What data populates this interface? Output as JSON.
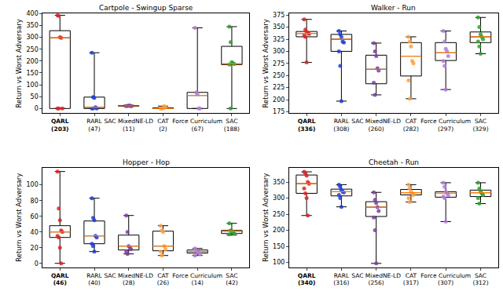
{
  "chart_data": [
    {
      "type": "box",
      "title": "Cartpole - Swingup Sparse",
      "ylabel": "Return vs Worst Adversary",
      "categories": [
        "QARL\n(203)",
        "RARL\n(47)",
        "SAC MixedNE-LD\n(11)",
        "CAT\n(2)",
        "Force Curriculum\n(67)",
        "SAC\n(188)"
      ],
      "colors": [
        "#d62728",
        "#1f3fd6",
        "#7b3f9e",
        "#ff9f40",
        "#b07cd8",
        "#2ca02c"
      ],
      "boxes": [
        {
          "low": 0,
          "q1": 0,
          "median": 298,
          "q3": 328,
          "high": 393
        },
        {
          "low": 0,
          "q1": 0,
          "median": 5,
          "q3": 48,
          "high": 235
        },
        {
          "low": 8,
          "q1": 10,
          "median": 11,
          "q3": 12,
          "high": 14
        },
        {
          "low": 0,
          "q1": 0,
          "median": 0,
          "q3": 3,
          "high": 10
        },
        {
          "low": 0,
          "q1": 0,
          "median": 55,
          "q3": 68,
          "high": 340
        },
        {
          "low": 0,
          "q1": 185,
          "median": 188,
          "q3": 262,
          "high": 345
        }
      ],
      "points": [
        [
          393,
          390,
          300,
          298,
          0,
          0,
          0
        ],
        [
          235,
          48,
          45,
          5,
          0,
          0,
          0
        ],
        [
          10,
          11,
          12,
          13,
          9
        ],
        [
          0,
          0,
          1,
          10,
          5
        ],
        [
          340,
          68,
          60,
          0,
          0
        ],
        [
          345,
          280,
          195,
          190,
          188,
          185,
          0
        ]
      ],
      "ylim": [
        -20,
        400
      ],
      "yticks": [
        0,
        50,
        100,
        150,
        200,
        250,
        300,
        350,
        400
      ],
      "grid": false
    },
    {
      "type": "box",
      "title": "Walker - Run",
      "ylabel": "Return vs Worst Adversary",
      "categories": [
        "QARL\n(336)",
        "RARL\n(308)",
        "SAC MixedNE-LD\n(260)",
        "CAT\n(282)",
        "Force Curriculum\n(297)",
        "SAC\n(329)"
      ],
      "colors": [
        "#d62728",
        "#1f3fd6",
        "#7b3f9e",
        "#ff9f40",
        "#b07cd8",
        "#2ca02c"
      ],
      "boxes": [
        {
          "low": 277,
          "q1": 330,
          "median": 337,
          "q3": 341,
          "high": 366
        },
        {
          "low": 197,
          "q1": 300,
          "median": 325,
          "q3": 335,
          "high": 342
        },
        {
          "low": 210,
          "q1": 233,
          "median": 263,
          "q3": 292,
          "high": 317
        },
        {
          "low": 202,
          "q1": 249,
          "median": 290,
          "q3": 318,
          "high": 330
        },
        {
          "low": 221,
          "q1": 281,
          "median": 297,
          "q3": 318,
          "high": 342
        },
        {
          "low": 295,
          "q1": 318,
          "median": 330,
          "q3": 340,
          "high": 370
        }
      ],
      "points": [
        [
          366,
          345,
          340,
          338,
          336,
          333,
          330,
          277
        ],
        [
          342,
          335,
          330,
          320,
          318,
          300,
          270,
          197
        ],
        [
          317,
          300,
          290,
          265,
          260,
          235,
          210
        ],
        [
          330,
          320,
          310,
          280,
          275,
          240,
          202
        ],
        [
          342,
          320,
          305,
          300,
          290,
          280,
          270,
          221
        ],
        [
          370,
          350,
          335,
          330,
          325,
          320,
          310,
          295
        ]
      ],
      "ylim": [
        172,
        378
      ],
      "yticks": [
        175,
        200,
        225,
        250,
        275,
        300,
        325,
        350,
        375
      ],
      "grid": false
    },
    {
      "type": "box",
      "title": "Hopper - Hop",
      "ylabel": "Return vs Worst Adversary",
      "categories": [
        "QARL\n(46)",
        "RARL\n(40)",
        "SAC MixedNE-LD\n(28)",
        "CAT\n(26)",
        "Force Curriculum\n(14)",
        "SAC\n(42)"
      ],
      "colors": [
        "#d62728",
        "#1f3fd6",
        "#7b3f9e",
        "#ff9f40",
        "#b07cd8",
        "#2ca02c"
      ],
      "boxes": [
        {
          "low": 0,
          "q1": 33,
          "median": 40,
          "q3": 48,
          "high": 117
        },
        {
          "low": 15,
          "q1": 25,
          "median": 35,
          "q3": 54,
          "high": 83
        },
        {
          "low": 12,
          "q1": 17,
          "median": 22,
          "q3": 36,
          "high": 61
        },
        {
          "low": 10,
          "q1": 16,
          "median": 22,
          "q3": 41,
          "high": 48
        },
        {
          "low": 10,
          "q1": 13,
          "median": 15,
          "q3": 17,
          "high": 19
        },
        {
          "low": 36,
          "q1": 38,
          "median": 41,
          "q3": 42,
          "high": 51
        }
      ],
      "points": [
        [
          117,
          70,
          55,
          42,
          40,
          35,
          33,
          20,
          0
        ],
        [
          83,
          58,
          55,
          35,
          33,
          25,
          22,
          15
        ],
        [
          61,
          40,
          22,
          20,
          18,
          15,
          12
        ],
        [
          48,
          42,
          40,
          22,
          18,
          15,
          10
        ],
        [
          19,
          17,
          15,
          14,
          12,
          10
        ],
        [
          51,
          42,
          41,
          40,
          38,
          37
        ]
      ],
      "ylim": [
        -5,
        122
      ],
      "yticks": [
        0,
        20,
        40,
        60,
        80,
        100
      ],
      "grid": false
    },
    {
      "type": "box",
      "title": "Cheetah - Run",
      "ylabel": "Return vs Worst Adversary",
      "categories": [
        "QARL\n(340)",
        "RARL\n(316)",
        "SAC MixedNE-LD\n(256)",
        "CAT\n(317)",
        "Force Curriculum\n(307)",
        "SAC\n(312)"
      ],
      "colors": [
        "#d62728",
        "#1f3fd6",
        "#7b3f9e",
        "#ff9f40",
        "#b07cd8",
        "#2ca02c"
      ],
      "boxes": [
        {
          "low": 246,
          "q1": 315,
          "median": 345,
          "q3": 372,
          "high": 382
        },
        {
          "low": 273,
          "q1": 307,
          "median": 320,
          "q3": 328,
          "high": 342
        },
        {
          "low": 97,
          "q1": 243,
          "median": 272,
          "q3": 289,
          "high": 318
        },
        {
          "low": 288,
          "q1": 310,
          "median": 317,
          "q3": 327,
          "high": 342
        },
        {
          "low": 227,
          "q1": 303,
          "median": 315,
          "q3": 320,
          "high": 348
        },
        {
          "low": 283,
          "q1": 305,
          "median": 317,
          "q3": 325,
          "high": 348
        }
      ],
      "points": [
        [
          382,
          378,
          370,
          350,
          345,
          330,
          315,
          300,
          246
        ],
        [
          342,
          335,
          325,
          320,
          318,
          310,
          300,
          273
        ],
        [
          318,
          295,
          285,
          272,
          260,
          240,
          200,
          97
        ],
        [
          342,
          330,
          320,
          315,
          310,
          300,
          288
        ],
        [
          348,
          335,
          320,
          315,
          310,
          305,
          300,
          227
        ],
        [
          348,
          330,
          320,
          315,
          310,
          300,
          283
        ]
      ],
      "ylim": [
        85,
        395
      ],
      "yticks": [
        100,
        150,
        200,
        250,
        300,
        350
      ],
      "grid": false
    }
  ]
}
